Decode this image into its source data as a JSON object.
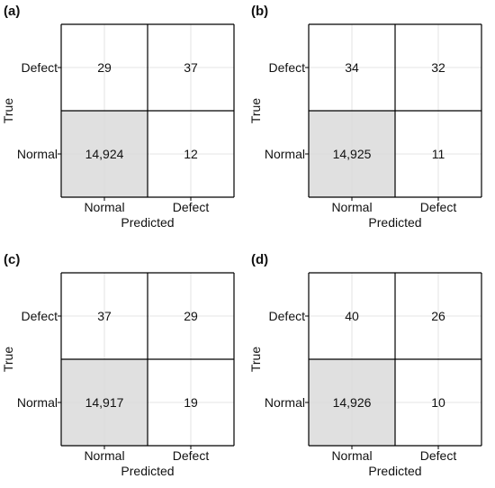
{
  "chart_data": [
    {
      "type": "heatmap",
      "panel_label": "(a)",
      "xlabel": "Predicted",
      "ylabel": "True",
      "x_categories": [
        "Normal",
        "Defect"
      ],
      "y_categories": [
        "Defect",
        "Normal"
      ],
      "cells": [
        [
          "29",
          "37"
        ],
        [
          "14,924",
          "12"
        ]
      ],
      "values": [
        [
          29,
          37
        ],
        [
          14924,
          12
        ]
      ],
      "highlight_cell": [
        1,
        0
      ],
      "highlight_color": "#e0e0e0",
      "grid": true
    },
    {
      "type": "heatmap",
      "panel_label": "(b)",
      "xlabel": "Predicted",
      "ylabel": "True",
      "x_categories": [
        "Normal",
        "Defect"
      ],
      "y_categories": [
        "Defect",
        "Normal"
      ],
      "cells": [
        [
          "34",
          "32"
        ],
        [
          "14,925",
          "11"
        ]
      ],
      "values": [
        [
          34,
          32
        ],
        [
          14925,
          11
        ]
      ],
      "highlight_cell": [
        1,
        0
      ],
      "highlight_color": "#e0e0e0",
      "grid": true
    },
    {
      "type": "heatmap",
      "panel_label": "(c)",
      "xlabel": "Predicted",
      "ylabel": "True",
      "x_categories": [
        "Normal",
        "Defect"
      ],
      "y_categories": [
        "Defect",
        "Normal"
      ],
      "cells": [
        [
          "37",
          "29"
        ],
        [
          "14,917",
          "19"
        ]
      ],
      "values": [
        [
          37,
          29
        ],
        [
          14917,
          19
        ]
      ],
      "highlight_cell": [
        1,
        0
      ],
      "highlight_color": "#e0e0e0",
      "grid": true
    },
    {
      "type": "heatmap",
      "panel_label": "(d)",
      "xlabel": "Predicted",
      "ylabel": "True",
      "x_categories": [
        "Normal",
        "Defect"
      ],
      "y_categories": [
        "Defect",
        "Normal"
      ],
      "cells": [
        [
          "40",
          "26"
        ],
        [
          "14,926",
          "10"
        ]
      ],
      "values": [
        [
          40,
          26
        ],
        [
          14926,
          10
        ]
      ],
      "highlight_cell": [
        1,
        0
      ],
      "highlight_color": "#e0e0e0",
      "grid": true
    }
  ]
}
